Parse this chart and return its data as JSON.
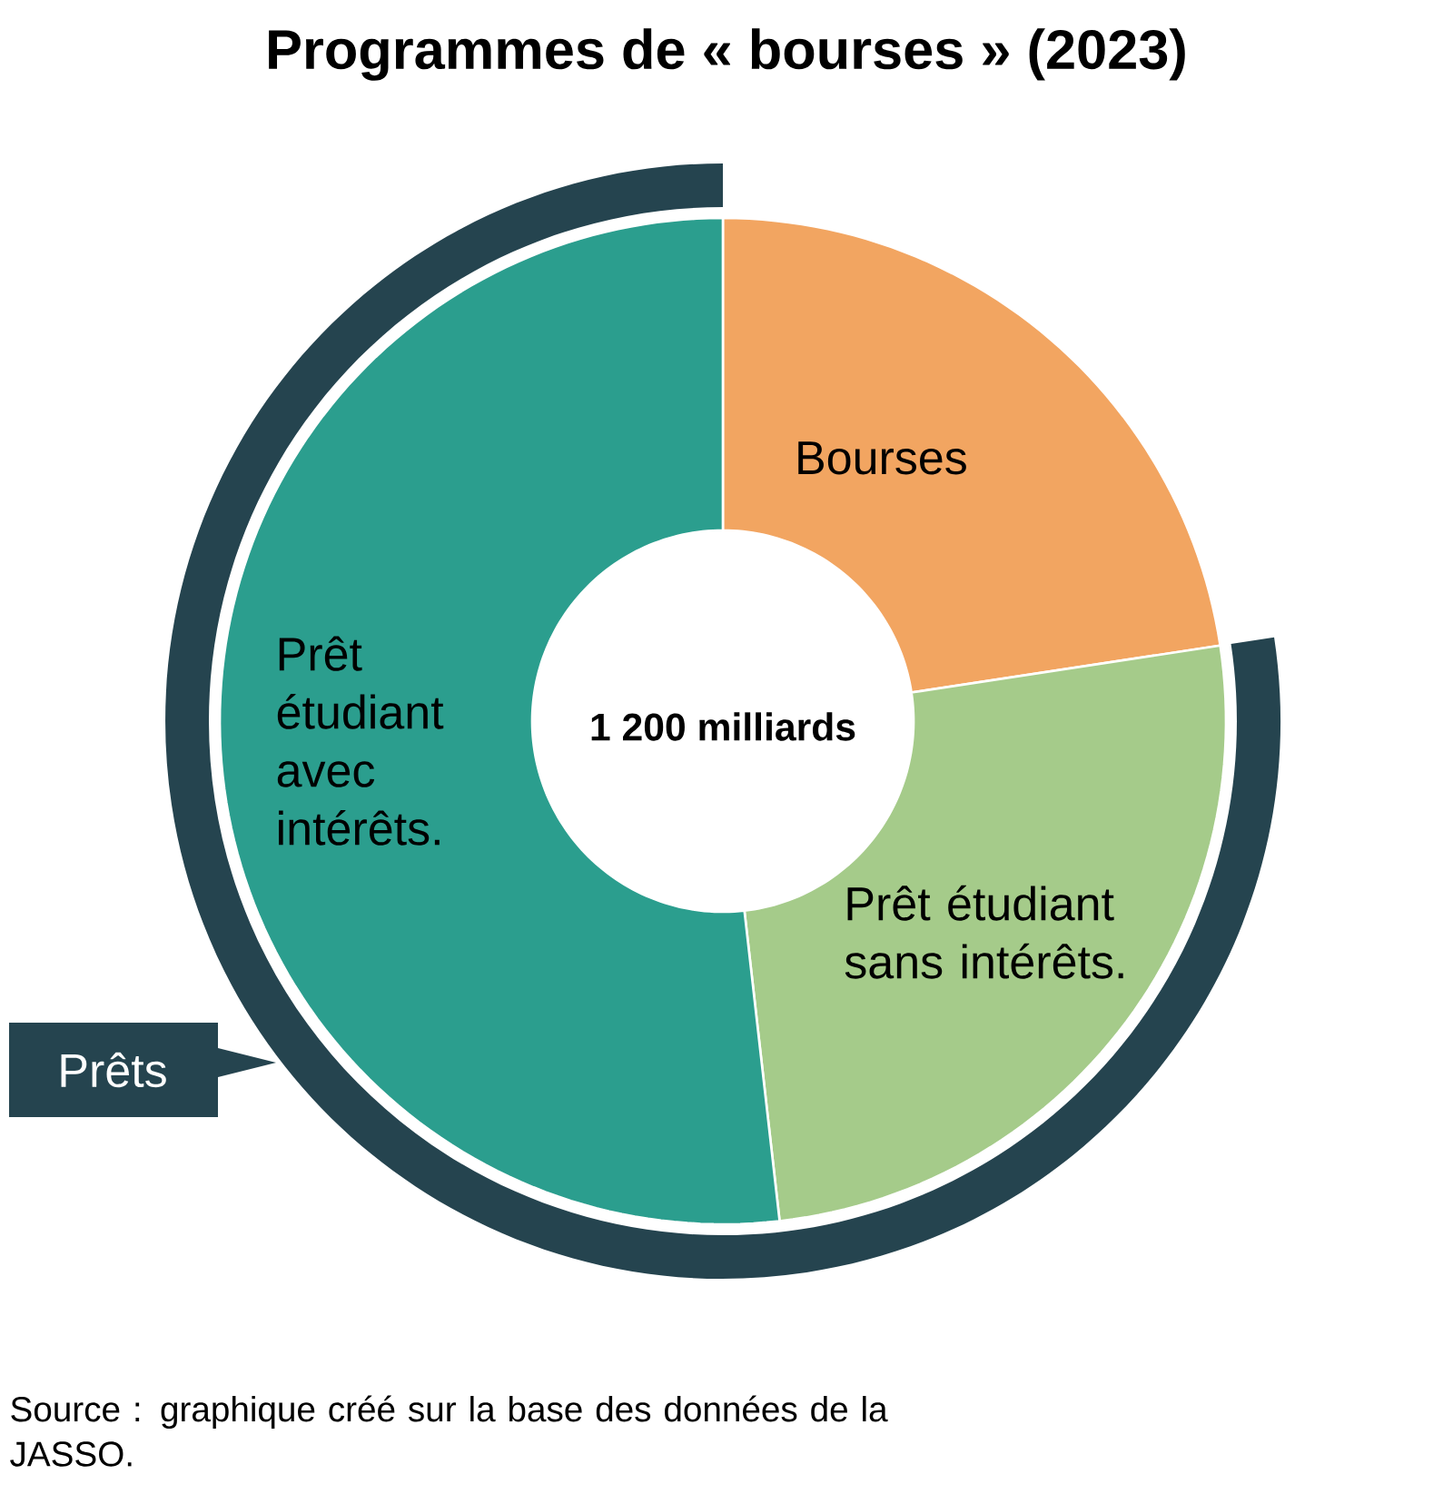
{
  "chart_data": {
    "type": "donut",
    "title": "Programmes de « bourses » (2023)",
    "categories": [
      "Bourses",
      "Prêt étudiant sans intérêts.",
      "Prêt étudiant avec intérêts."
    ],
    "values": [
      22.6,
      25.6,
      51.8
    ],
    "colors": [
      "#f2a561",
      "#a5cb8a",
      "#2b9e8e"
    ],
    "annotations": [
      "1 200 milliards",
      "Prêts",
      "Source : graphique créé sur la base des données de la JASSO."
    ]
  }
}
